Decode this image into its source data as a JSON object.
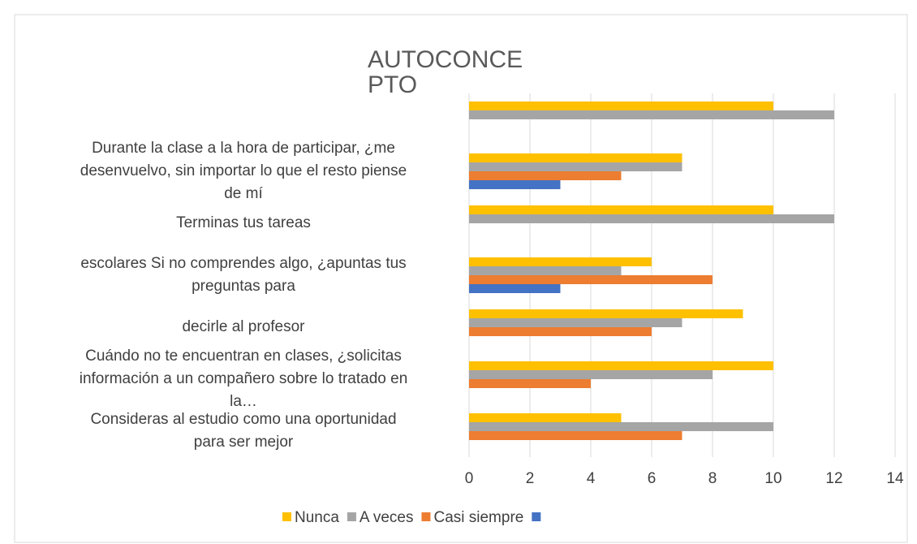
{
  "chart_data": {
    "type": "bar",
    "orientation": "horizontal",
    "title": [
      "AUTOCONCE",
      "PTO"
    ],
    "categories": [
      null,
      [
        "Durante la clase a la hora de participar, ¿me",
        "desenvuelvo, sin importar lo que el resto piense",
        "de mí"
      ],
      [
        "Terminas tus tareas"
      ],
      [
        "escolares Si no comprendes algo, ¿apuntas tus",
        "preguntas para"
      ],
      [
        "decirle al profesor"
      ],
      [
        "Cuándo no te encuentran en clases, ¿solicitas",
        "información a un compañero sobre lo tratado en",
        "la…"
      ],
      [
        "Consideras al estudio como una oportunidad",
        "para ser mejor"
      ]
    ],
    "series": [
      {
        "name": "Nunca",
        "color": "#ffc000",
        "values": [
          10,
          7,
          10,
          6,
          9,
          10,
          5
        ]
      },
      {
        "name": "A veces",
        "color": "#a5a5a5",
        "values": [
          12,
          7,
          12,
          5,
          7,
          8,
          10
        ]
      },
      {
        "name": "Casi siempre",
        "color": "#ed7d31",
        "values": [
          null,
          5,
          null,
          8,
          6,
          4,
          7
        ]
      },
      {
        "name": null,
        "color": "#4472c4",
        "values": [
          null,
          3,
          null,
          3,
          null,
          null,
          null
        ]
      }
    ],
    "xlim": [
      0,
      14
    ],
    "xticks": [
      0,
      2,
      4,
      6,
      8,
      10,
      12,
      14
    ],
    "grid": true,
    "legend": "bottom"
  }
}
